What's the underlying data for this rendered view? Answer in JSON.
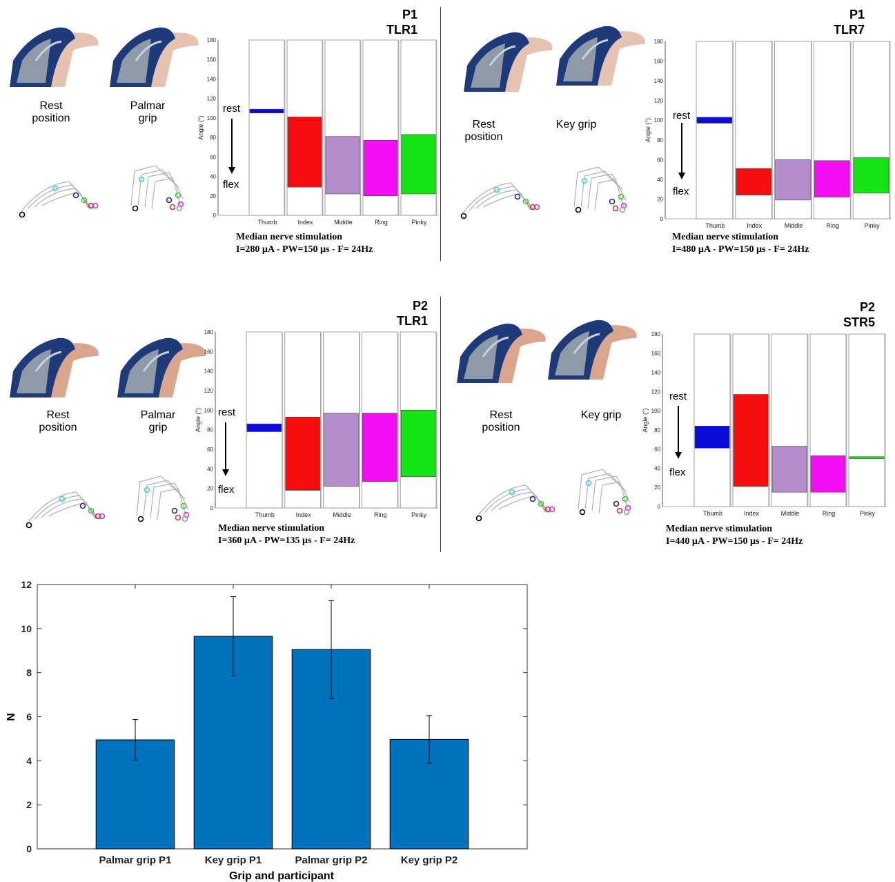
{
  "colors": {
    "thumb": "#0b0bdc",
    "index": "#f50d0d",
    "middle": "#b58ccc",
    "ring": "#f20df2",
    "pinky": "#12e512",
    "bar": "#0072bd",
    "hand_cyan": "#39d6d6",
    "hand_navy": "#23238e",
    "hand_green": "#3cc43c",
    "hand_red": "#d63030",
    "hand_pink": "#d030d0",
    "hand_lilac": "#a78cc8"
  },
  "finger_labels": [
    "Thumb",
    "Index",
    "Middle",
    "Ring",
    "Pinky"
  ],
  "angle_ylabel": "Angle  (°)",
  "rest_label": "rest",
  "flex_label": "flex",
  "panels": [
    {
      "participant": "P1",
      "electrode": "TLR1",
      "caption_left": "Rest\nposition",
      "caption_right": "Palmar\ngrip",
      "stim_title": "Median nerve stimulation",
      "stim_params": "I=280 µA - PW=150 µs - F= 24Hz",
      "ranges": [
        [
          105,
          109
        ],
        [
          29,
          101
        ],
        [
          22,
          81
        ],
        [
          20,
          77
        ],
        [
          22,
          83
        ]
      ]
    },
    {
      "participant": "P1",
      "electrode": "TLR7",
      "caption_left": "Rest\nposition",
      "caption_right": "Key grip",
      "stim_title": "Median nerve stimulation",
      "stim_params": "I=480 µA - PW=150 µs - F= 24Hz",
      "ranges": [
        [
          97,
          103
        ],
        [
          24,
          51
        ],
        [
          19,
          60
        ],
        [
          22,
          59
        ],
        [
          26,
          62
        ]
      ]
    },
    {
      "participant": "P2",
      "electrode": "TLR1",
      "caption_left": "Rest\nposition",
      "caption_right": "Palmar\ngrip",
      "stim_title": "Median nerve stimulation",
      "stim_params": "I=360 µA - PW=135 µs - F= 24Hz",
      "ranges": [
        [
          78,
          86
        ],
        [
          18,
          93
        ],
        [
          22,
          97
        ],
        [
          27,
          97
        ],
        [
          32,
          100
        ]
      ]
    },
    {
      "participant": "P2",
      "electrode": "STR5",
      "caption_left": "Rest\nposition",
      "caption_right": "Key grip",
      "stim_title": "Median nerve stimulation",
      "stim_params": "I=440 µA - PW=150 µs - F= 24Hz",
      "ranges": [
        [
          61,
          84
        ],
        [
          21,
          117
        ],
        [
          15,
          63
        ],
        [
          15,
          53
        ],
        [
          50,
          52
        ]
      ]
    }
  ],
  "chart_data": [
    {
      "type": "bar",
      "title": "P1 TLR1",
      "ylabel": "Angle  (°)",
      "ylim": [
        0,
        180
      ],
      "yticks": [
        0,
        20,
        40,
        60,
        80,
        100,
        120,
        140,
        160,
        180
      ],
      "categories": [
        "Thumb",
        "Index",
        "Middle",
        "Ring",
        "Pinky"
      ],
      "ranges": [
        [
          105,
          109
        ],
        [
          29,
          101
        ],
        [
          22,
          81
        ],
        [
          20,
          77
        ],
        [
          22,
          83
        ]
      ]
    },
    {
      "type": "bar",
      "title": "P1 TLR7",
      "ylabel": "Angle  (°)",
      "ylim": [
        0,
        180
      ],
      "yticks": [
        0,
        20,
        40,
        60,
        80,
        100,
        120,
        140,
        160,
        180
      ],
      "categories": [
        "Thumb",
        "Index",
        "Middle",
        "Ring",
        "Pinky"
      ],
      "ranges": [
        [
          97,
          103
        ],
        [
          24,
          51
        ],
        [
          19,
          60
        ],
        [
          22,
          59
        ],
        [
          26,
          62
        ]
      ]
    },
    {
      "type": "bar",
      "title": "P2 TLR1",
      "ylabel": "Angle  (°)",
      "ylim": [
        0,
        180
      ],
      "yticks": [
        0,
        20,
        40,
        60,
        80,
        100,
        120,
        140,
        160,
        180
      ],
      "categories": [
        "Thumb",
        "Index",
        "Middle",
        "Ring",
        "Pinky"
      ],
      "ranges": [
        [
          78,
          86
        ],
        [
          18,
          93
        ],
        [
          22,
          97
        ],
        [
          27,
          97
        ],
        [
          32,
          100
        ]
      ]
    },
    {
      "type": "bar",
      "title": "P2 STR5",
      "ylabel": "Angle  (°)",
      "ylim": [
        0,
        180
      ],
      "yticks": [
        0,
        20,
        40,
        60,
        80,
        100,
        120,
        140,
        160,
        180
      ],
      "categories": [
        "Thumb",
        "Index",
        "Middle",
        "Ring",
        "Pinky"
      ],
      "ranges": [
        [
          61,
          84
        ],
        [
          21,
          117
        ],
        [
          15,
          63
        ],
        [
          15,
          53
        ],
        [
          50,
          52
        ]
      ]
    },
    {
      "type": "bar",
      "categories": [
        "Palmar grip P1",
        "Key grip P1",
        "Palmar grip P2",
        "Key grip P2"
      ],
      "values": [
        4.95,
        9.65,
        9.05,
        4.97
      ],
      "errors": [
        0.92,
        1.8,
        2.22,
        1.08
      ],
      "xlabel": "Grip and participant",
      "ylabel": "N",
      "ylim": [
        0,
        12
      ],
      "yticks": [
        0,
        2,
        4,
        6,
        8,
        10,
        12
      ],
      "xlim": [
        0,
        5
      ]
    }
  ]
}
